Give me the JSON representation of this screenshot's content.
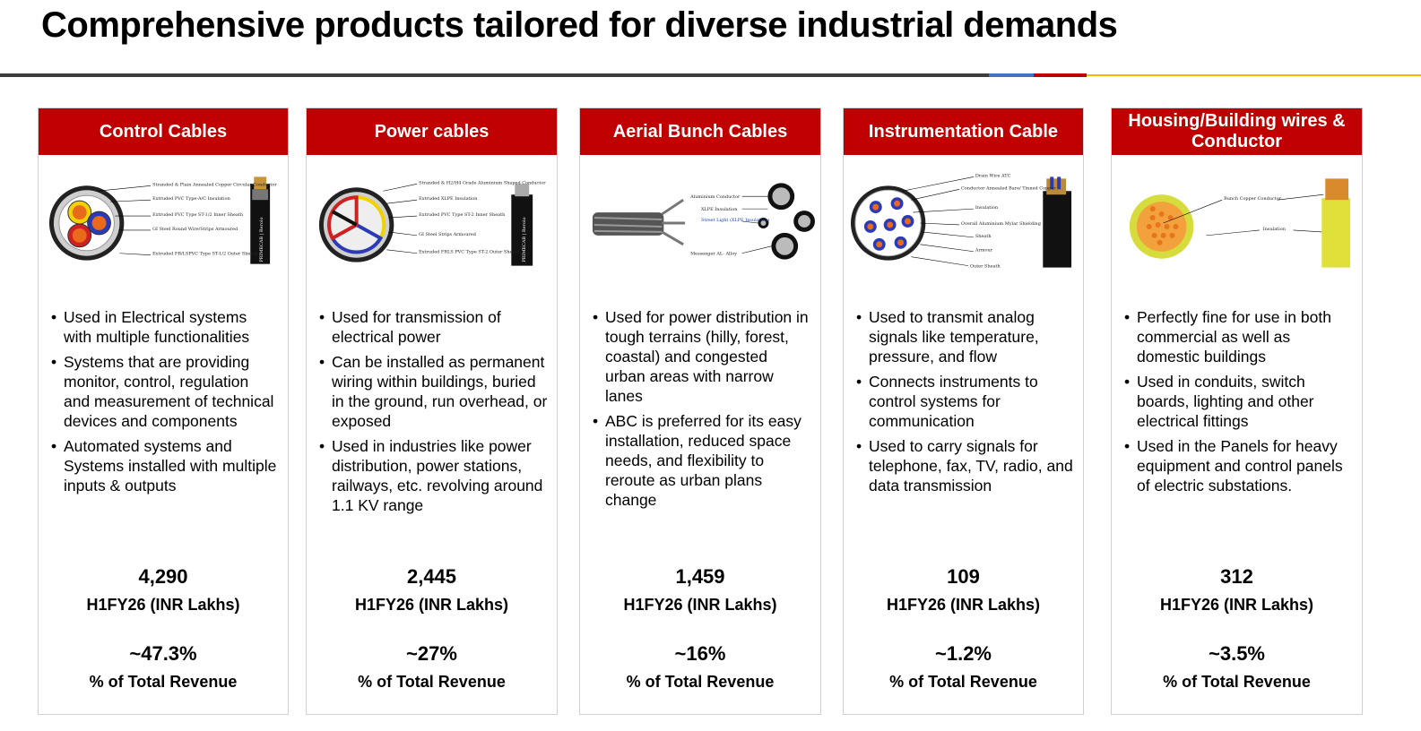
{
  "page": {
    "title": "Comprehensive products tailored for diverse industrial demands"
  },
  "cards": [
    {
      "title": "Control Cables",
      "bullets": [
        "Used in Electrical systems with multiple functionalities",
        "Systems that are providing monitor, control, regulation and measurement of technical devices and components",
        "Automated systems and Systems installed with multiple inputs & outputs"
      ],
      "value": "4,290",
      "value_label": "H1FY26 (INR Lakhs)",
      "share": "~47.3%",
      "share_label": "% of Total Revenue",
      "diagram_labels": [
        "Stranded & Plain Annealed Copper Circular Conductor",
        "Extruded PVC Type-A/C Insulation",
        "Extruded PVC Type ST-1/2 Inner Sheath",
        "GI Steel Round Wire/Strips Armoured",
        "Extruded FR/LSPVC Type ST-1/2 Outer Sheath"
      ],
      "brand_mark": "PRIMECAB | Rerolo"
    },
    {
      "title": "Power cables",
      "bullets": [
        "Used for transmission of electrical power",
        "Can be installed as permanent wiring within buildings, buried in the ground, run overhead, or exposed",
        "Used in industries like power distribution, power stations, railways, etc. revolving around 1.1 KV range"
      ],
      "value": "2,445",
      "value_label": "H1FY26 (INR Lakhs)",
      "share": "~27%",
      "share_label": "% of Total Revenue",
      "diagram_labels": [
        "Stranded & H2/H4 Grade Aluminium Shaped Conductor",
        "Extruded XLPE Insulation",
        "Extruded PVC Type ST-2 Inner Sheath",
        "GI Steel Strips Armoured",
        "Extruded FRLS PVC Type ST-2 Outer Sheath"
      ],
      "brand_mark": "PRIMECAB | Rerolo"
    },
    {
      "title": "Aerial Bunch Cables",
      "bullets": [
        "Used for power distribution in tough terrains (hilly, forest, coastal) and congested urban areas with narrow lanes",
        "ABC is preferred for its easy installation, reduced space needs, and flexibility to reroute as urban plans change"
      ],
      "value": "1,459",
      "value_label": "H1FY26 (INR Lakhs)",
      "share": "~16%",
      "share_label": "% of Total Revenue",
      "diagram_labels": [
        "Aluminium Conductor",
        "XLPE Insulation",
        "Street Light (XLPE Insulation)",
        "Messenger AL- Alloy"
      ]
    },
    {
      "title": "Instrumentation Cable",
      "bullets": [
        "Used to transmit analog signals like temperature, pressure, and flow",
        "Connects instruments to control systems for communication",
        "Used to carry signals for telephone, fax, TV, radio, and data transmission"
      ],
      "value": "109",
      "value_label": "H1FY26 (INR Lakhs)",
      "share": "~1.2%",
      "share_label": "% of Total Revenue",
      "diagram_labels": [
        "Drain Wire ATC",
        "Conductor Annealed Bare/ Tinned Copper",
        "Insulation",
        "Overall Aluminium Mylar Shielding",
        "Sheath",
        "Armour",
        "Outer Sheath"
      ]
    },
    {
      "title": "Housing/Building wires & Conductor",
      "bullets": [
        "Perfectly fine for use in both commercial as well as domestic buildings",
        "Used in conduits, switch boards, lighting and other electrical fittings",
        "Used in the Panels for heavy equipment and control panels of electric substations."
      ],
      "value": "312",
      "value_label": "H1FY26 (INR Lakhs)",
      "share": "~3.5%",
      "share_label": "% of Total Revenue",
      "diagram_labels": [
        "Bunch Copper Conductor",
        "Insulation"
      ]
    }
  ],
  "colors": {
    "accent_red": "#c00000",
    "rule_dark": "#3c3c3c",
    "rule_blue": "#4472c4",
    "rule_gold": "#f2b800"
  }
}
